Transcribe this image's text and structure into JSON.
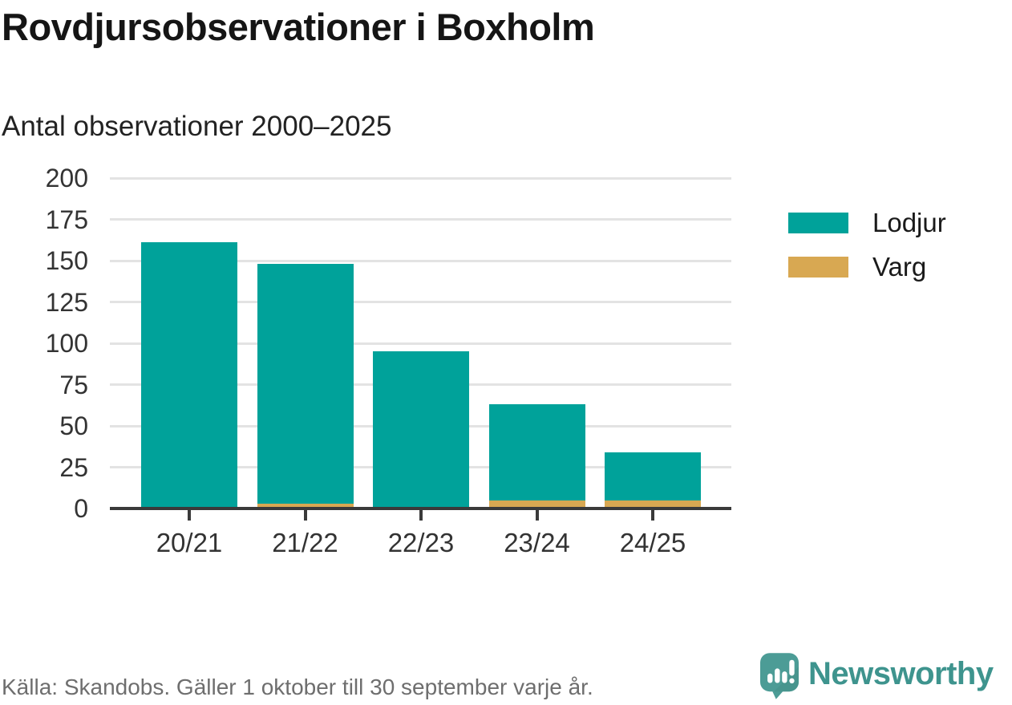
{
  "header": {
    "title": "Rovdjursobservationer i Boxholm",
    "subtitle": "Antal observationer 2000–2025"
  },
  "chart_data": {
    "type": "bar",
    "stacked": true,
    "title": "Rovdjursobservationer i Boxholm",
    "subtitle": "Antal observationer 2000–2025",
    "categories": [
      "20/21",
      "21/22",
      "22/23",
      "23/24",
      "24/25"
    ],
    "series": [
      {
        "name": "Lodjur",
        "color": "#00a29a",
        "values": [
          161,
          145,
          95,
          58,
          29
        ]
      },
      {
        "name": "Varg",
        "color": "#d8a852",
        "values": [
          0,
          3,
          0,
          5,
          5
        ]
      }
    ],
    "totals": [
      161,
      148,
      95,
      63,
      34
    ],
    "xlabel": "",
    "ylabel": "Antal observationer",
    "ylim": [
      0,
      200
    ],
    "yticks": [
      0,
      25,
      50,
      75,
      100,
      125,
      150,
      175,
      200
    ],
    "grid": true,
    "legend_position": "right"
  },
  "footer": {
    "source": "Källa: Skandobs. Gäller 1 oktober till 30 september varje år.",
    "brand": "Newsworthy"
  },
  "colors": {
    "lodjur": "#00a29a",
    "varg": "#d8a852",
    "axis": "#3a3a3a",
    "gridline": "#e3e3e3",
    "text": "#333333",
    "source_text": "#6e6e6e",
    "brand_teal": "#3e948e",
    "brand_icon": "#4c9c96"
  }
}
